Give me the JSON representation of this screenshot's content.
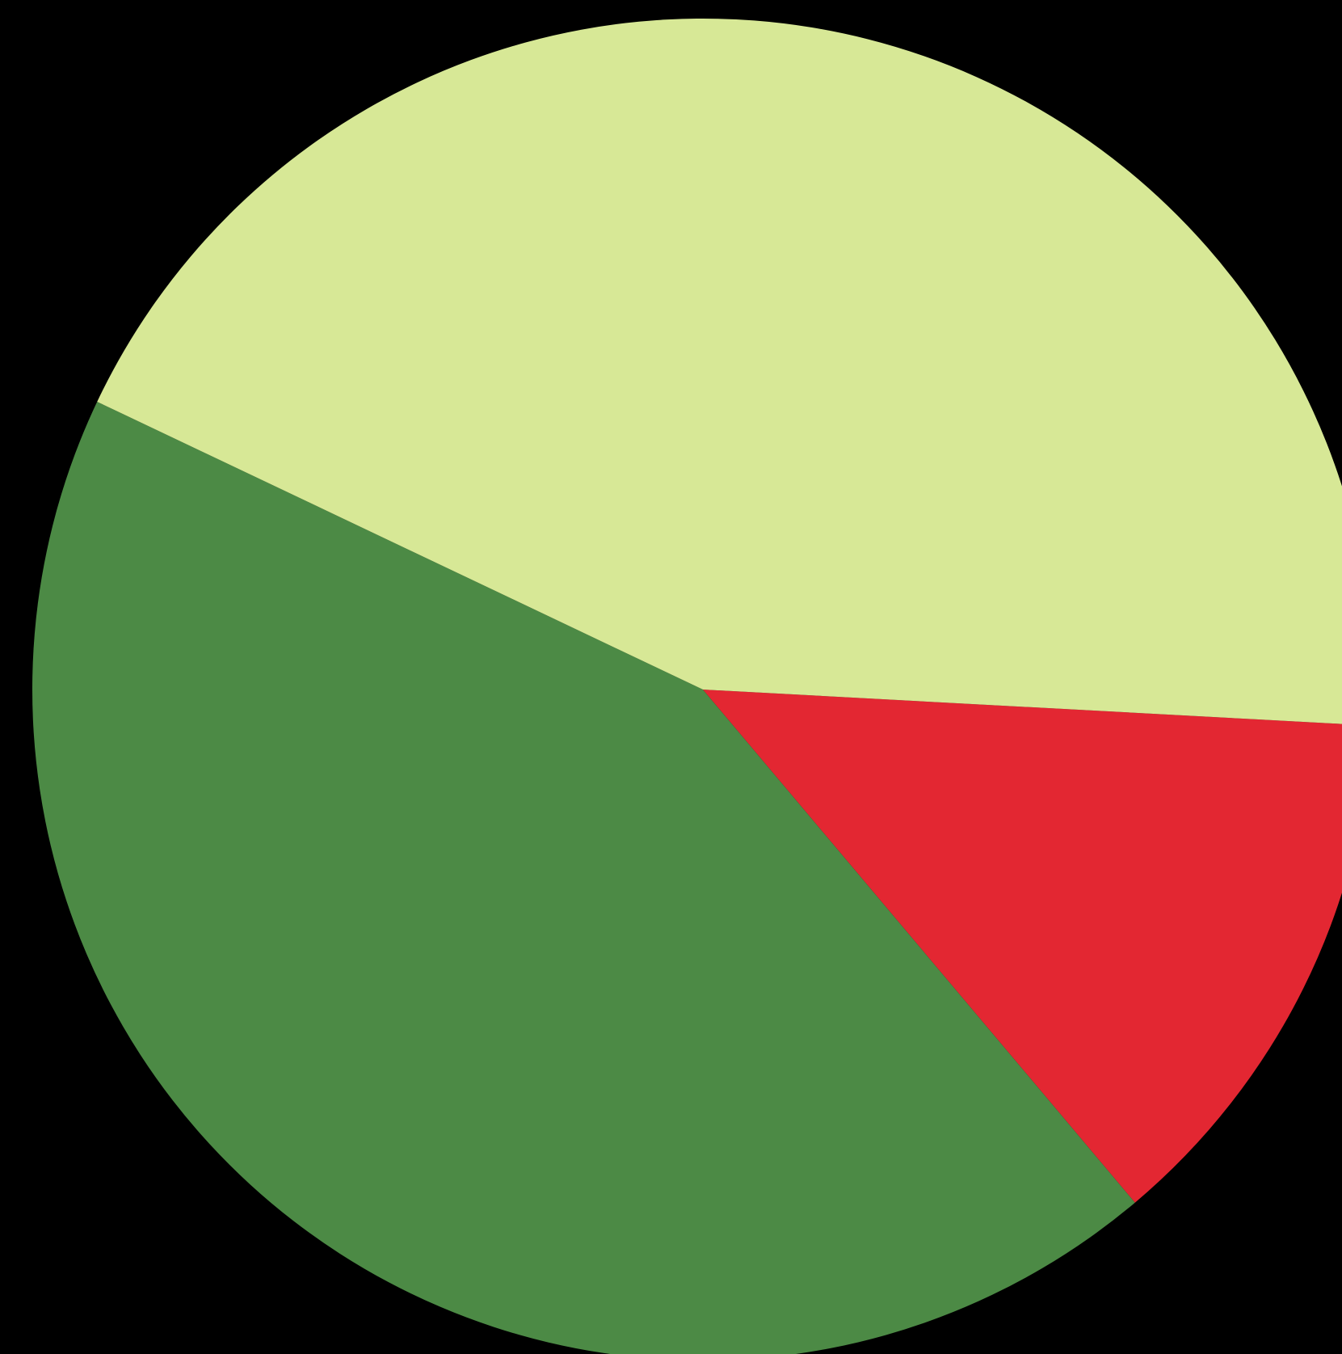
{
  "chart_data": {
    "type": "pie",
    "title": "",
    "start_angle_deg": 154.6,
    "direction": "counterclockwise",
    "slices": [
      {
        "value": 43.2,
        "color": "#4c8a45"
      },
      {
        "value": 13.0,
        "color": "#e32732"
      },
      {
        "value": 43.8,
        "color": "#d7e896"
      }
    ],
    "background": "#000000"
  }
}
